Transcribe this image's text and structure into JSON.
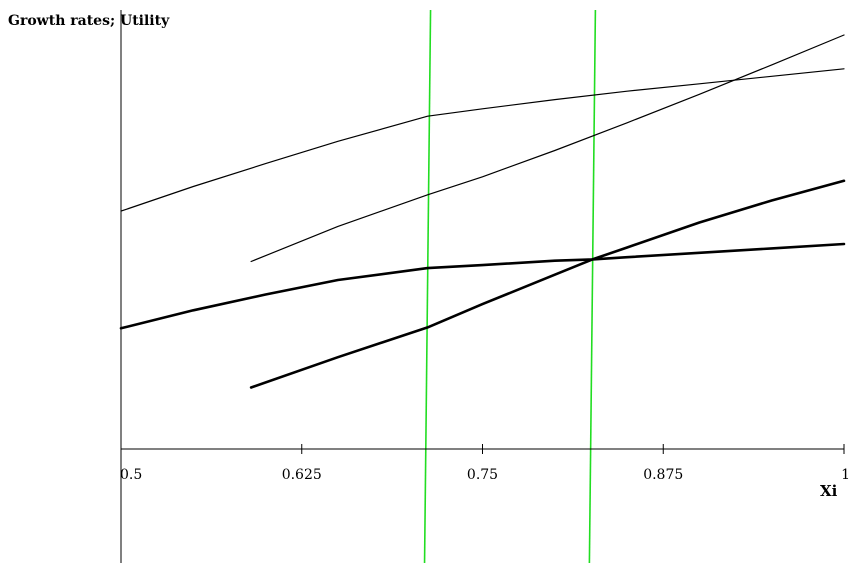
{
  "chart_data": {
    "type": "line",
    "title": "",
    "ylabel": "Growth rates; Utility",
    "xlabel": "Xi",
    "xlim": [
      0.5,
      1
    ],
    "ylim": [
      0,
      1
    ],
    "grid": false,
    "x_ticks": [
      {
        "value": 0.5,
        "label": "0.5"
      },
      {
        "value": 0.625,
        "label": "0.625"
      },
      {
        "value": 0.75,
        "label": "0.75"
      },
      {
        "value": 0.875,
        "label": "0.875"
      },
      {
        "value": 1,
        "label": "1"
      }
    ],
    "vertical_lines": [
      {
        "x": 0.712,
        "color": "#22dd22"
      },
      {
        "x": 0.826,
        "color": "#22dd22"
      }
    ],
    "series": [
      {
        "style": "thin",
        "color": "#000000",
        "x": [
          0.5,
          0.55,
          0.6,
          0.65,
          0.712,
          0.75,
          0.8,
          0.85,
          0.9,
          0.95,
          1.0
        ],
        "y": [
          0.542,
          0.598,
          0.65,
          0.701,
          0.758,
          0.775,
          0.796,
          0.815,
          0.832,
          0.849,
          0.866
        ]
      },
      {
        "style": "thin",
        "color": "#000000",
        "x": [
          0.59,
          0.65,
          0.712,
          0.75,
          0.8,
          0.85,
          0.9,
          0.95,
          1.0
        ],
        "y": [
          0.427,
          0.507,
          0.579,
          0.62,
          0.68,
          0.743,
          0.808,
          0.875,
          0.943
        ]
      },
      {
        "style": "thick",
        "color": "#000000",
        "x": [
          0.5,
          0.55,
          0.6,
          0.65,
          0.712,
          0.75,
          0.8,
          0.826,
          0.85,
          0.9,
          0.95,
          1.0
        ],
        "y": [
          0.275,
          0.316,
          0.352,
          0.385,
          0.412,
          0.419,
          0.429,
          0.432,
          0.437,
          0.447,
          0.457,
          0.467
        ]
      },
      {
        "style": "thick",
        "color": "#000000",
        "x": [
          0.59,
          0.65,
          0.712,
          0.75,
          0.8,
          0.826,
          0.85,
          0.9,
          0.95,
          1.0
        ],
        "y": [
          0.14,
          0.209,
          0.277,
          0.33,
          0.397,
          0.432,
          0.459,
          0.516,
          0.566,
          0.611
        ]
      }
    ]
  }
}
